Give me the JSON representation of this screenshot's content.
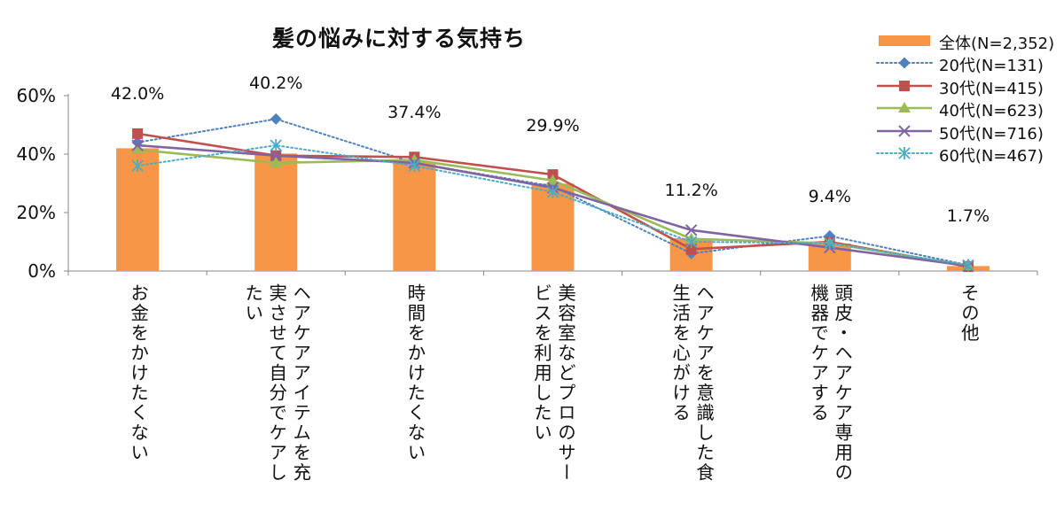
{
  "chart_data": {
    "type": "bar",
    "title": "髪の悩みに対する気持ち",
    "categories": [
      "お金をかけたくない",
      "ヘアケアアイテムを充実させて自分でケアしたい",
      "時間をかけたくない",
      "美容室などプロのサービスを利用したい",
      "ヘアケアを意識した食生活を心がける",
      "頭皮・ヘアケア専用の機器でケアする",
      "その他"
    ],
    "category_lines": [
      [
        "お金をかけたくない"
      ],
      [
        "ヘアケアアイテムを充",
        "実させて自分でケアし",
        "たい"
      ],
      [
        "時間をかけたくない"
      ],
      [
        "美容室などプロのサー",
        "ビスを利用したい"
      ],
      [
        "ヘアケアを意識した食",
        "生活を心がける"
      ],
      [
        "頭皮・ヘアケア専用の",
        "機器でケアする"
      ],
      [
        "その他"
      ]
    ],
    "ylim": [
      0,
      60
    ],
    "yticks": [
      0,
      20,
      40,
      60
    ],
    "ytick_labels": [
      "0%",
      "20%",
      "40%",
      "60%"
    ],
    "legend_position": "top-right",
    "bar_series": {
      "name": "全体(N=2,352)",
      "color": "#F79646",
      "values": [
        42.0,
        40.2,
        37.4,
        29.9,
        11.2,
        9.4,
        1.7
      ],
      "value_labels": [
        "42.0%",
        "40.2%",
        "37.4%",
        "29.9%",
        "11.2%",
        "9.4%",
        "1.7%"
      ]
    },
    "line_series": [
      {
        "name": "20代(N=131)",
        "color": "#4F81BD",
        "marker": "diamond",
        "dash": "dotted",
        "values": [
          44,
          52,
          37,
          29,
          6,
          12,
          2
        ]
      },
      {
        "name": "30代(N=415)",
        "color": "#C0504D",
        "marker": "square",
        "dash": "solid",
        "values": [
          47,
          39.5,
          39,
          33,
          7.5,
          10,
          1.5
        ]
      },
      {
        "name": "40代(N=623)",
        "color": "#9BBB59",
        "marker": "triangle",
        "dash": "solid",
        "values": [
          41.5,
          37,
          38,
          31,
          11,
          9.5,
          1.8
        ]
      },
      {
        "name": "50代(N=716)",
        "color": "#8064A2",
        "marker": "x",
        "dash": "solid",
        "values": [
          43,
          39.5,
          37,
          28.5,
          14,
          8,
          1.8
        ]
      },
      {
        "name": "60代(N=467)",
        "color": "#4BACC6",
        "marker": "asterisk",
        "dash": "dotted",
        "values": [
          36,
          43,
          36,
          27,
          10,
          9.5,
          2
        ]
      }
    ]
  }
}
